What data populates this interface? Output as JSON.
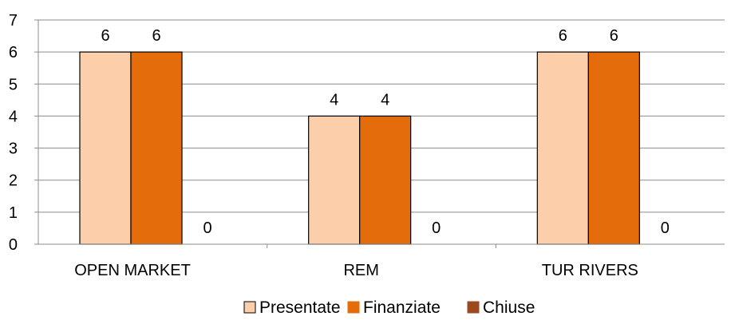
{
  "chart_data": {
    "type": "bar",
    "title": "",
    "xlabel": "",
    "ylabel": "",
    "categories": [
      "OPEN MARKET",
      "REM",
      "TUR RIVERS"
    ],
    "series": [
      {
        "name": "Presentate",
        "values": [
          6,
          4,
          6
        ],
        "color": "#FCCFAA"
      },
      {
        "name": "Finanziate",
        "values": [
          6,
          4,
          6
        ],
        "color": "#E46C0A"
      },
      {
        "name": "Chiuse",
        "values": [
          0,
          0,
          0
        ],
        "color": "#9A4A1C"
      }
    ],
    "ylim": [
      0,
      7
    ],
    "yticks": [
      "0",
      "1",
      "2",
      "3",
      "4",
      "5",
      "6",
      "7"
    ],
    "grid": true,
    "data_labels": true,
    "legend_position": "bottom"
  },
  "colors": {
    "grid": "#8c8c8c",
    "axis": "#8c8c8c",
    "bar_stroke": "#000000"
  }
}
